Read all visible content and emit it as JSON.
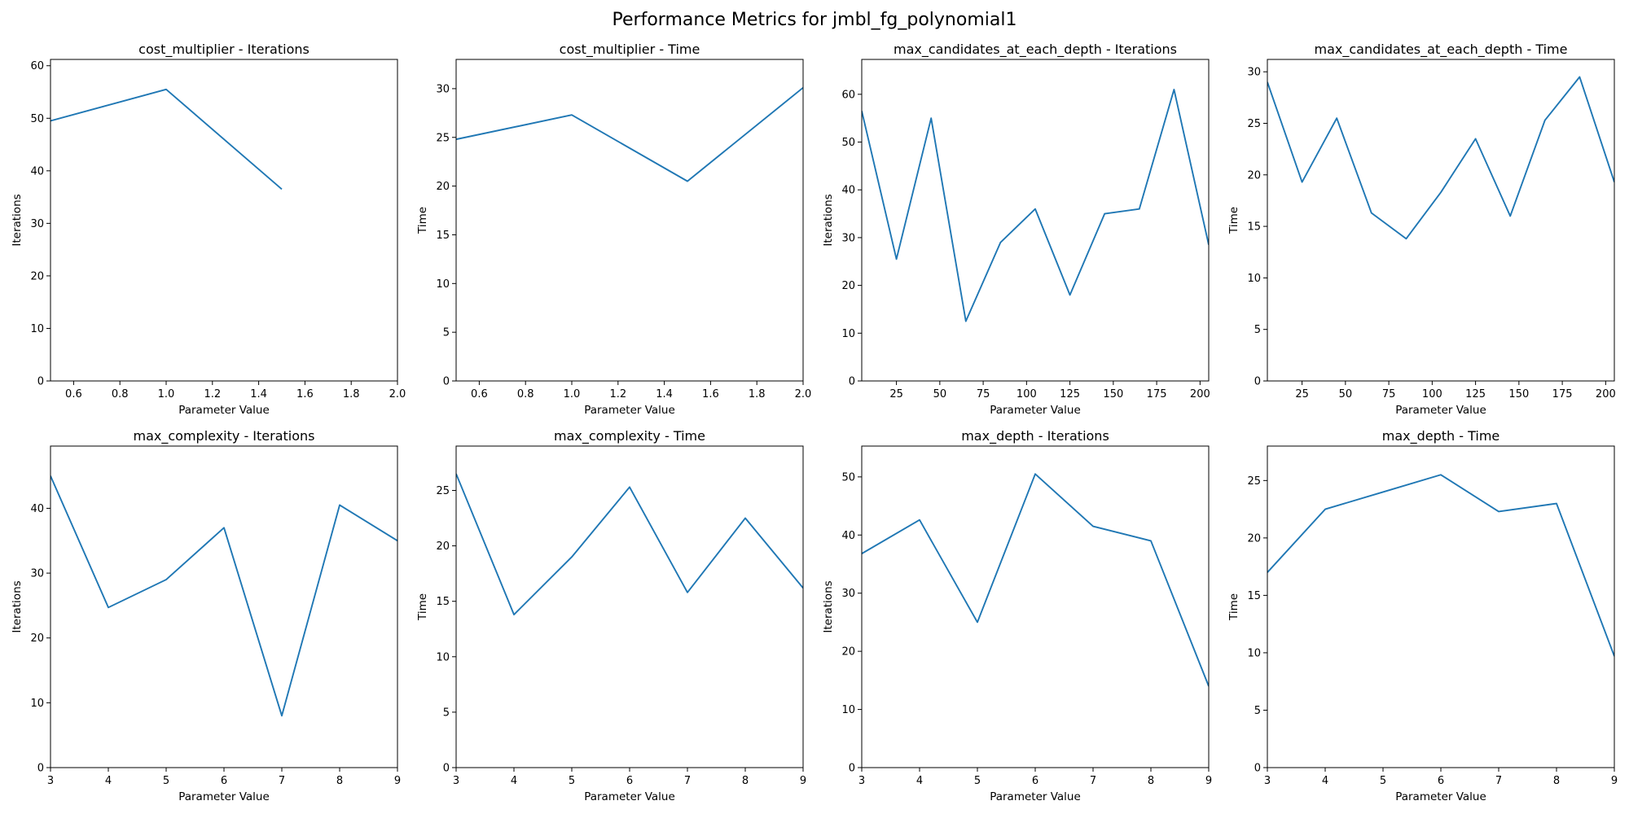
{
  "suptitle": "Performance Metrics for jmbl_fg_polynomial1",
  "colors": {
    "line": "#1f77b4",
    "axes": "#000000",
    "background": "#ffffff"
  },
  "chart_data": [
    {
      "type": "line",
      "title": "cost_multiplier - Iterations",
      "xlabel": "Parameter Value",
      "ylabel": "Iterations",
      "xlim": [
        0.5,
        2.0
      ],
      "ylim": [
        0,
        61.2
      ],
      "xticks": [
        "0.6",
        "0.8",
        "1.0",
        "1.2",
        "1.4",
        "1.6",
        "1.8",
        "2.0"
      ],
      "yticks": [
        "0",
        "10",
        "20",
        "30",
        "40",
        "50",
        "60"
      ],
      "grid": false,
      "x": [
        0.5,
        1.0,
        1.5
      ],
      "y": [
        49.5,
        55.5,
        36.5
      ]
    },
    {
      "type": "line",
      "title": "cost_multiplier - Time",
      "xlabel": "Parameter Value",
      "ylabel": "Time",
      "xlim": [
        0.5,
        2.0
      ],
      "ylim": [
        0,
        33.0
      ],
      "xticks": [
        "0.6",
        "0.8",
        "1.0",
        "1.2",
        "1.4",
        "1.6",
        "1.8",
        "2.0"
      ],
      "yticks": [
        "0",
        "5",
        "10",
        "15",
        "20",
        "25",
        "30"
      ],
      "grid": false,
      "x": [
        0.5,
        1.0,
        1.5,
        2.0
      ],
      "y": [
        24.8,
        27.3,
        20.5,
        30.1
      ]
    },
    {
      "type": "line",
      "title": "max_candidates_at_each_depth - Iterations",
      "xlabel": "Parameter Value",
      "ylabel": "Iterations",
      "xlim": [
        5,
        205
      ],
      "ylim": [
        0,
        67.3
      ],
      "xticks": [
        "25",
        "50",
        "75",
        "100",
        "125",
        "150",
        "175",
        "200"
      ],
      "yticks": [
        "0",
        "10",
        "20",
        "30",
        "40",
        "50",
        "60"
      ],
      "grid": false,
      "x": [
        5,
        25,
        45,
        65,
        85,
        105,
        125,
        145,
        165,
        185,
        205
      ],
      "y": [
        56.5,
        25.5,
        55.0,
        12.5,
        29.0,
        36.0,
        18.0,
        35.0,
        36.0,
        61.0,
        28.5
      ]
    },
    {
      "type": "line",
      "title": "max_candidates_at_each_depth - Time",
      "xlabel": "Parameter Value",
      "ylabel": "Time",
      "xlim": [
        5,
        205
      ],
      "ylim": [
        0,
        31.2
      ],
      "xticks": [
        "25",
        "50",
        "75",
        "100",
        "125",
        "150",
        "175",
        "200"
      ],
      "yticks": [
        "0",
        "5",
        "10",
        "15",
        "20",
        "25",
        "30"
      ],
      "grid": false,
      "x": [
        5,
        25,
        45,
        65,
        85,
        105,
        125,
        145,
        165,
        185,
        205
      ],
      "y": [
        29.0,
        19.3,
        25.5,
        16.3,
        13.8,
        18.3,
        23.5,
        16.0,
        25.3,
        29.5,
        19.3
      ]
    },
    {
      "type": "line",
      "title": "max_complexity - Iterations",
      "xlabel": "Parameter Value",
      "ylabel": "Iterations",
      "xlim": [
        3,
        9
      ],
      "ylim": [
        0,
        49.6
      ],
      "xticks": [
        "3",
        "4",
        "5",
        "6",
        "7",
        "8",
        "9"
      ],
      "yticks": [
        "0",
        "10",
        "20",
        "30",
        "40"
      ],
      "grid": false,
      "x": [
        3,
        4,
        5,
        6,
        7,
        8,
        9
      ],
      "y": [
        45.0,
        24.7,
        29.0,
        37.0,
        8.0,
        40.5,
        35.0
      ]
    },
    {
      "type": "line",
      "title": "max_complexity - Time",
      "xlabel": "Parameter Value",
      "ylabel": "Time",
      "xlim": [
        3,
        9
      ],
      "ylim": [
        0,
        29.0
      ],
      "xticks": [
        "3",
        "4",
        "5",
        "6",
        "7",
        "8",
        "9"
      ],
      "yticks": [
        "0",
        "5",
        "10",
        "15",
        "20",
        "25"
      ],
      "grid": false,
      "x": [
        3,
        4,
        5,
        6,
        7,
        8,
        9
      ],
      "y": [
        26.5,
        13.8,
        19.0,
        25.3,
        15.8,
        22.5,
        16.2
      ]
    },
    {
      "type": "line",
      "title": "max_depth - Iterations",
      "xlabel": "Parameter Value",
      "ylabel": "Iterations",
      "xlim": [
        3,
        9
      ],
      "ylim": [
        0,
        55.3
      ],
      "xticks": [
        "3",
        "4",
        "5",
        "6",
        "7",
        "8",
        "9"
      ],
      "yticks": [
        "0",
        "10",
        "20",
        "30",
        "40",
        "50"
      ],
      "grid": false,
      "x": [
        3,
        4,
        5,
        6,
        7,
        8,
        9
      ],
      "y": [
        36.8,
        42.6,
        25.0,
        50.5,
        41.5,
        39.0,
        14.0
      ]
    },
    {
      "type": "line",
      "title": "max_depth - Time",
      "xlabel": "Parameter Value",
      "ylabel": "Time",
      "xlim": [
        3,
        9
      ],
      "ylim": [
        0,
        28.0
      ],
      "xticks": [
        "3",
        "4",
        "5",
        "6",
        "7",
        "8",
        "9"
      ],
      "yticks": [
        "0",
        "5",
        "10",
        "15",
        "20",
        "25"
      ],
      "grid": false,
      "x": [
        3,
        4,
        5,
        6,
        7,
        8,
        9
      ],
      "y": [
        17.0,
        22.5,
        24.0,
        25.5,
        22.3,
        23.0,
        9.7
      ]
    }
  ]
}
